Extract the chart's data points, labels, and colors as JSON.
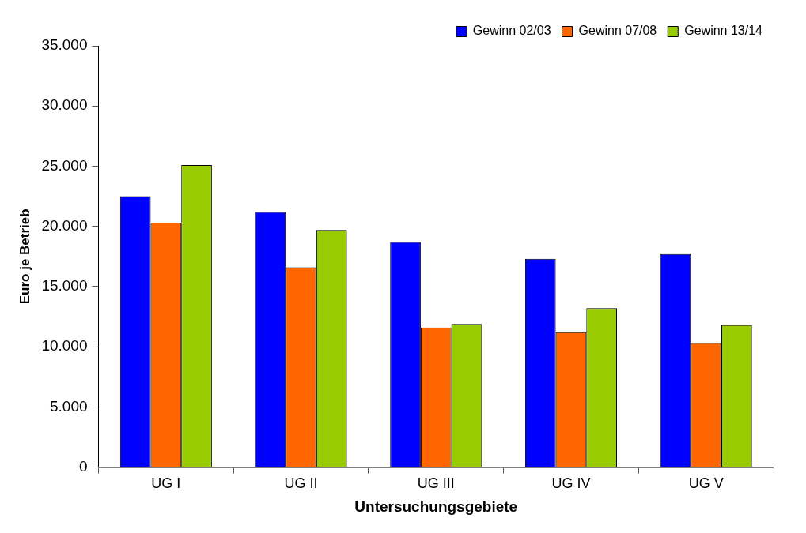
{
  "chart_data": {
    "type": "bar",
    "xlabel": "Untersuchungsgebiete",
    "ylabel": "Euro je Betrieb",
    "categories": [
      "UG I",
      "UG II",
      "UG III",
      "UG IV",
      "UG V"
    ],
    "series": [
      {
        "name": "Gewinn 02/03",
        "color": "#0000ff",
        "values": [
          22500,
          21200,
          18700,
          17300,
          17700
        ]
      },
      {
        "name": "Gewinn 07/08",
        "color": "#ff6600",
        "values": [
          20300,
          16600,
          11600,
          11200,
          10300
        ]
      },
      {
        "name": "Gewinn 13/14",
        "color": "#99cc00",
        "values": [
          25100,
          19700,
          11900,
          13200,
          11800
        ]
      }
    ],
    "ylim": [
      0,
      35000
    ],
    "yticks": [
      {
        "value": 0,
        "label": "0"
      },
      {
        "value": 5000,
        "label": "5.000"
      },
      {
        "value": 10000,
        "label": "10.000"
      },
      {
        "value": 15000,
        "label": "15.000"
      },
      {
        "value": 20000,
        "label": "20.000"
      },
      {
        "value": 25000,
        "label": "25.000"
      },
      {
        "value": 30000,
        "label": "30.000"
      },
      {
        "value": 35000,
        "label": "35.000"
      }
    ],
    "grid": false,
    "legend": "top right"
  }
}
